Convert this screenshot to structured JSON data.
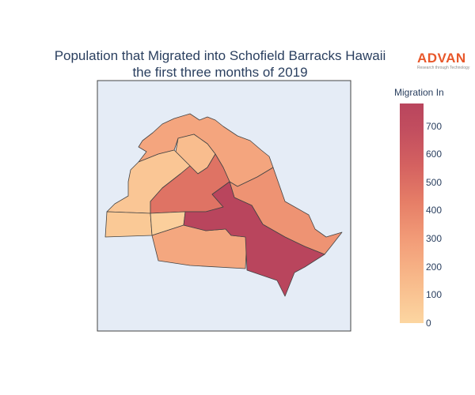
{
  "title": {
    "line1": "Population that Migrated into Schofield Barracks Hawaii",
    "line2": "the first three months of 2019"
  },
  "logo": {
    "wordmark": "ADVAN",
    "tagline": "Research through Technology"
  },
  "colorbar": {
    "title": "Migration In",
    "ticks": [
      "0",
      "100",
      "200",
      "300",
      "400",
      "500",
      "600",
      "700"
    ],
    "tick_values": [
      0,
      100,
      200,
      300,
      400,
      500,
      600,
      700
    ],
    "range": [
      0,
      780
    ],
    "colors": [
      "#fcd6a1",
      "#f8b98a",
      "#f29c78",
      "#e67e67",
      "#d46160",
      "#c24e5f",
      "#b9455d"
    ]
  },
  "map": {
    "background": "#e5ecf6",
    "border_color": "#444444",
    "regions": [
      {
        "id": "north-ridge",
        "value": 220
      },
      {
        "id": "north-inner",
        "value": 110
      },
      {
        "id": "west-upper",
        "value": 70
      },
      {
        "id": "central-west",
        "value": 440
      },
      {
        "id": "west-lower",
        "value": 60
      },
      {
        "id": "west-middle",
        "value": 30
      },
      {
        "id": "south-central",
        "value": 210
      },
      {
        "id": "east",
        "value": 300
      },
      {
        "id": "southeast",
        "value": 780
      }
    ]
  }
}
